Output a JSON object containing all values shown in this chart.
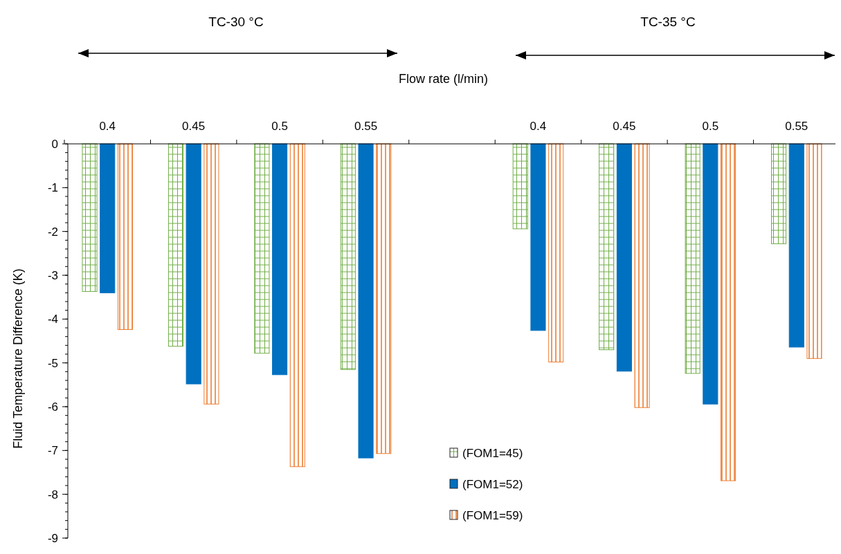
{
  "chart_data": {
    "type": "bar",
    "xlabel": "Flow rate (l/min)",
    "ylabel": "Fluid Temperature Difference (K)",
    "annotations": [
      "TC-30 °C",
      "TC-35 °C"
    ],
    "categories": [
      "0.4",
      "0.45",
      "0.5",
      "0.55",
      null,
      "0.4",
      "0.45",
      "0.5",
      "0.55"
    ],
    "series": [
      {
        "name": "(FOM1=45)",
        "color": "#70ad47",
        "values": [
          -3.37,
          -4.62,
          -4.78,
          -5.15,
          null,
          -1.94,
          -4.7,
          -5.24,
          -2.28
        ]
      },
      {
        "name": "(FOM1=52)",
        "color": "#0070c0",
        "values": [
          -3.4,
          -5.48,
          -5.27,
          -7.17,
          null,
          -4.26,
          -5.19,
          -5.94,
          -4.64
        ]
      },
      {
        "name": "(FOM1=59)",
        "color": "#ed7d31",
        "values": [
          -4.24,
          -5.94,
          -7.37,
          -7.07,
          null,
          -4.98,
          -6.02,
          -7.69,
          -4.9
        ]
      }
    ],
    "ylim": [
      -9,
      0
    ],
    "yticks": [
      0,
      -1,
      -2,
      -3,
      -4,
      -5,
      -6,
      -7,
      -8,
      -9
    ],
    "legend": "bottom",
    "grid": false
  }
}
